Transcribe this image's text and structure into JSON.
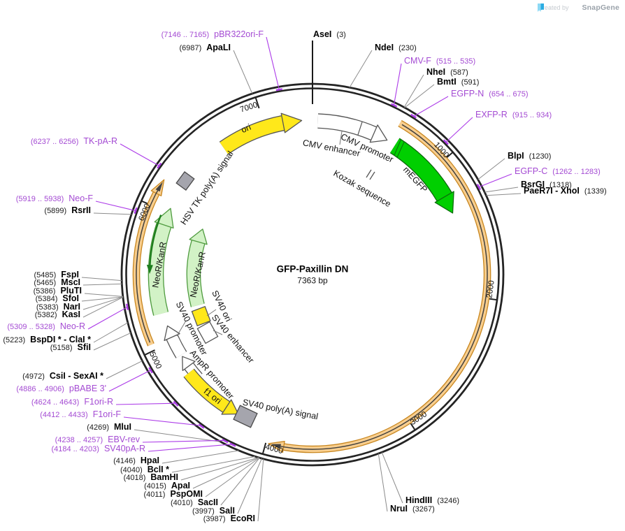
{
  "watermark": {
    "created_by": "Created by",
    "brand": "SnapGene"
  },
  "plasmid": {
    "name": "GFP-Paxillin DN",
    "size": "7363 bp"
  },
  "scale_ticks": [
    "1000",
    "2000",
    "3000",
    "4000",
    "5000",
    "6000",
    "7000"
  ],
  "colors": {
    "backbone": "#242424",
    "enzyme_text": "#000000",
    "primer_text": "#A44BD3",
    "primer_line": "#AC3BE8",
    "leader_line": "#8C8C8C",
    "orf_fill": "#F8CE8E",
    "orf_edge": "#C8861E",
    "orf_centerline": "#414141",
    "egfp_fill": "#00CF00",
    "egfp_edge": "#0B6B0B",
    "pale_green_fill": "#D2F2C6",
    "pale_green_edge": "#4F9B3F",
    "yellow_fill": "#FFE81A",
    "white_fill": "#FFFFFF",
    "gray_box": "#A5A5AD",
    "outline_gray": "#555555",
    "logo_light_blue": "#8CD9F5",
    "logo_blue": "#2BACE2"
  },
  "enzymes": [
    {
      "name": "ApaLI",
      "pos": "(6987)"
    },
    {
      "name": "RsrII",
      "pos": "(5899)"
    },
    {
      "name": "FspI",
      "pos": "(5485)"
    },
    {
      "name": "MscI",
      "pos": "(5465)"
    },
    {
      "name": "PluTI",
      "pos": "(5386)"
    },
    {
      "name": "SfoI",
      "pos": "(5384)"
    },
    {
      "name": "NarI",
      "pos": "(5383)"
    },
    {
      "name": "KasI",
      "pos": "(5382)"
    },
    {
      "name": "BspDI * - ClaI *",
      "pos": "(5223)"
    },
    {
      "name": "SfiI",
      "pos": "(5158)"
    },
    {
      "name": "CsiI - SexAI *",
      "pos": "(4972)"
    },
    {
      "name": "MluI",
      "pos": "(4269)"
    },
    {
      "name": "HpaI",
      "pos": "(4146)"
    },
    {
      "name": "BclI *",
      "pos": "(4040)"
    },
    {
      "name": "BamHI",
      "pos": "(4018)"
    },
    {
      "name": "ApaI",
      "pos": "(4015)"
    },
    {
      "name": "PspOMI",
      "pos": "(4011)"
    },
    {
      "name": "SacII",
      "pos": "(4010)"
    },
    {
      "name": "SalI",
      "pos": "(3997)"
    },
    {
      "name": "EcoRI",
      "pos": "(3987)"
    },
    {
      "name": "AseI",
      "pos": "(3)"
    },
    {
      "name": "NdeI",
      "pos": "(230)"
    },
    {
      "name": "NheI",
      "pos": "(587)"
    },
    {
      "name": "BmtI",
      "pos": "(591)"
    },
    {
      "name": "BlpI",
      "pos": "(1230)"
    },
    {
      "name": "BsrGI",
      "pos": "(1318)"
    },
    {
      "name": "PaeR7I - XhoI",
      "pos": "(1339)"
    },
    {
      "name": "HindIII",
      "pos": "(3246)"
    },
    {
      "name": "NruI",
      "pos": "(3267)"
    }
  ],
  "primers": [
    {
      "name": "pBR322ori-F",
      "range": "(7146 .. 7165)"
    },
    {
      "name": "TK-pA-R",
      "range": "(6237 .. 6256)"
    },
    {
      "name": "Neo-F",
      "range": "(5919 .. 5938)"
    },
    {
      "name": "Neo-R",
      "range": "(5309 .. 5328)"
    },
    {
      "name": "pBABE 3'",
      "range": "(4886 .. 4906)"
    },
    {
      "name": "F1ori-R",
      "range": "(4624 .. 4643)"
    },
    {
      "name": "F1ori-F",
      "range": "(4412 .. 4433)"
    },
    {
      "name": "EBV-rev",
      "range": "(4238 .. 4257)"
    },
    {
      "name": "SV40pA-R",
      "range": "(4184 .. 4203)"
    },
    {
      "name": "CMV-F",
      "range": "(515 .. 535)"
    },
    {
      "name": "EGFP-N",
      "range": "(654 .. 675)"
    },
    {
      "name": "EXFP-R",
      "range": "(915 .. 934)"
    },
    {
      "name": "EGFP-C",
      "range": "(1262 .. 1283)"
    }
  ],
  "features": [
    {
      "label": "ori"
    },
    {
      "label": "CMV enhancer"
    },
    {
      "label": "CMV promoter"
    },
    {
      "label": "Kozak sequence"
    },
    {
      "label": "mEGFP"
    },
    {
      "label": "HSV TK poly(A) signal"
    },
    {
      "label": "NeoR/KanR"
    },
    {
      "label": "NeoR/KanR"
    },
    {
      "label": "SV40 ori"
    },
    {
      "label": "SV40 enhancer"
    },
    {
      "label": "SV40 promoter"
    },
    {
      "label": "AmpR promoter"
    },
    {
      "label": "f1 ori"
    },
    {
      "label": "SV40 poly(A) signal"
    }
  ]
}
